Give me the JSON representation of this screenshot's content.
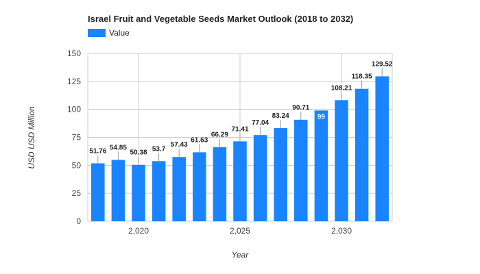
{
  "chart_data": {
    "type": "bar",
    "title": "Israel Fruit and Vegetable Seeds Market Outlook (2018 to 2032)",
    "xlabel": "Year",
    "ylabel": "USD USD Million",
    "legend": {
      "placement": "top-left",
      "entries": [
        "Value"
      ]
    },
    "ylim": [
      0,
      150
    ],
    "y_ticks": [
      0,
      25,
      50,
      75,
      100,
      125,
      150
    ],
    "xlim": [
      2017.5,
      2032.5
    ],
    "x_ticks": [
      2020,
      2025,
      2030
    ],
    "x_tick_labels": [
      "2,020",
      "2,025",
      "2,030"
    ],
    "grid": true,
    "series": [
      {
        "name": "Value",
        "color": "#1a84ff",
        "x": [
          2018,
          2019,
          2020,
          2021,
          2022,
          2023,
          2024,
          2025,
          2026,
          2027,
          2028,
          2029,
          2030,
          2031,
          2032
        ],
        "values": [
          51.76,
          54.85,
          50.38,
          53.7,
          57.43,
          61.63,
          66.29,
          71.41,
          77.04,
          83.24,
          90.71,
          99,
          108.21,
          118.35,
          129.52
        ],
        "labels": [
          "51.76",
          "54.85",
          "50.38",
          "53.7",
          "57.43",
          "61.63",
          "66.29",
          "71.41",
          "77.04",
          "83.24",
          "90.71",
          "99",
          "108.21",
          "118.35",
          "129.52"
        ]
      }
    ]
  }
}
